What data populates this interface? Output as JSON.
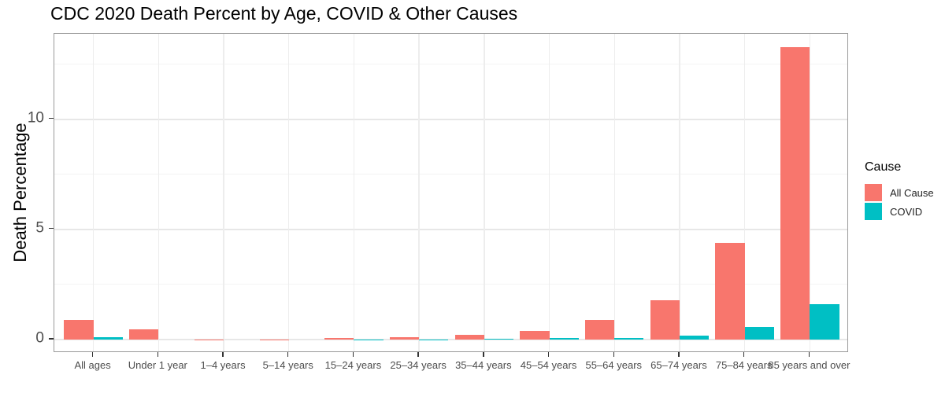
{
  "chart_data": {
    "type": "bar",
    "title": "CDC 2020 Death Percent by Age, COVID & Other Causes",
    "xlabel": "",
    "ylabel": "Death Percentage",
    "legend_title": "Cause",
    "legend_position": "right",
    "grid": {
      "horizontal_major": [
        0,
        5,
        10
      ],
      "horizontal_minor": [
        2.5,
        7.5,
        12.5
      ],
      "vertical_major": "at category centers"
    },
    "y_ticks": [
      0,
      5,
      10
    ],
    "ylim": [
      -0.61,
      13.87
    ],
    "categories": [
      "All ages",
      "Under 1 year",
      "1–4 years",
      "5–14 years",
      "15–24 years",
      "25–34 years",
      "35–44 years",
      "45–54 years",
      "55–64 years",
      "65–74 years",
      "75–84 years",
      "85 years and over"
    ],
    "series": [
      {
        "name": "All Cause",
        "color": "#F8766D",
        "values": [
          0.9,
          0.45,
          0.01,
          0.01,
          0.07,
          0.11,
          0.22,
          0.38,
          0.88,
          1.78,
          4.4,
          13.25
        ]
      },
      {
        "name": "COVID",
        "color": "#00BFC4",
        "values": [
          0.1,
          0.0,
          0.0,
          0.0,
          0.01,
          0.01,
          0.02,
          0.05,
          0.08,
          0.18,
          0.55,
          1.6
        ]
      }
    ]
  },
  "colors": {
    "all_cause": "#F8766D",
    "covid": "#00BFC4",
    "grid_major": "#e7e7e7",
    "grid_minor": "#f3f3f3",
    "panel_border": "#9a9a9a",
    "tick_text": "#4d4d4d",
    "axis_tick_mark": "#333333",
    "title_text": "#000000"
  }
}
